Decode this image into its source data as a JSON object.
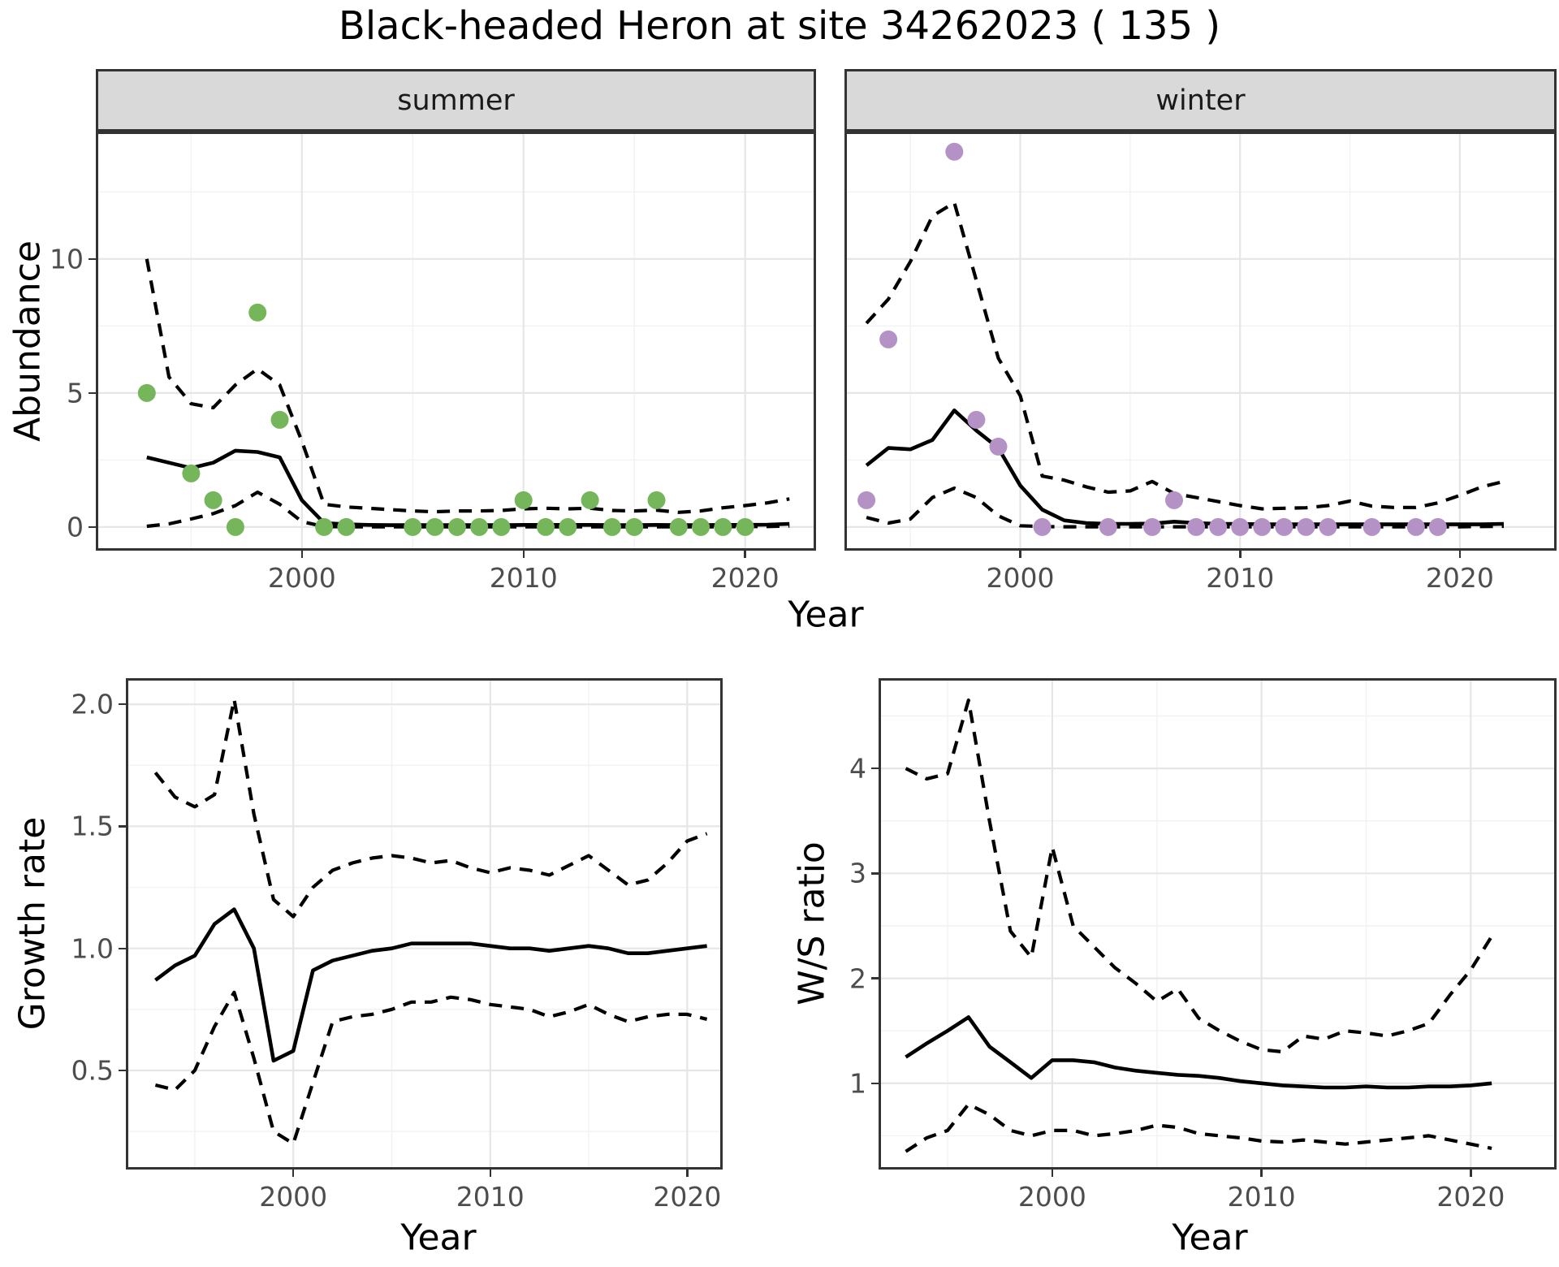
{
  "title": "Black-headed Heron at site 34262023 ( 135 )",
  "labels": {
    "year": "Year",
    "abundance": "Abundance"
  },
  "colors": {
    "summer_point": "#75B65A",
    "winter_point": "#B592C6",
    "line": "#000000",
    "grid_major": "#E6E6E6",
    "grid_minor": "#F2F2F2",
    "strip_bg": "#D9D9D9",
    "strip_text": "#1A1A1A",
    "panel_border": "#333333",
    "axis_text": "#4D4D4D",
    "tick": "#333333",
    "background": "#FFFFFF"
  },
  "chart_data": [
    {
      "id": "summer",
      "type": "line+scatter",
      "title": "summer",
      "xlabel": "Year",
      "ylabel": "Abundance",
      "xlim": [
        1990.7,
        2023.2
      ],
      "ylim": [
        -0.88,
        14.75
      ],
      "xticks": [
        2000,
        2010,
        2020
      ],
      "xtick_labels": [
        "2000",
        "2010",
        "2020"
      ],
      "yticks": [
        0,
        5,
        10
      ],
      "ytick_labels": [
        "0",
        "5",
        "10"
      ],
      "xminor": [
        1995,
        2005,
        2015
      ],
      "yminor": [
        2.5,
        7.5,
        12.5
      ],
      "years": [
        1993,
        1994,
        1995,
        1996,
        1997,
        1998,
        1999,
        2000,
        2001,
        2002,
        2003,
        2004,
        2005,
        2006,
        2007,
        2008,
        2009,
        2010,
        2011,
        2012,
        2013,
        2014,
        2015,
        2016,
        2017,
        2018,
        2019,
        2020,
        2021,
        2022
      ],
      "estimate": [
        2.6,
        2.4,
        2.2,
        2.4,
        2.85,
        2.8,
        2.6,
        1.0,
        0.15,
        0.1,
        0.08,
        0.07,
        0.07,
        0.07,
        0.07,
        0.07,
        0.07,
        0.08,
        0.08,
        0.08,
        0.08,
        0.07,
        0.07,
        0.08,
        0.07,
        0.07,
        0.08,
        0.08,
        0.09,
        0.12
      ],
      "upper_ci": [
        10.0,
        5.6,
        4.6,
        4.45,
        5.3,
        5.9,
        5.3,
        3.2,
        0.85,
        0.75,
        0.7,
        0.65,
        0.6,
        0.57,
        0.6,
        0.6,
        0.62,
        0.68,
        0.7,
        0.68,
        0.7,
        0.62,
        0.6,
        0.63,
        0.55,
        0.6,
        0.72,
        0.8,
        0.9,
        1.05
      ],
      "lower_ci": [
        0.03,
        0.12,
        0.3,
        0.5,
        0.8,
        1.3,
        0.85,
        0.2,
        0.02,
        0.01,
        0.01,
        0.01,
        0.01,
        0.01,
        0.01,
        0.01,
        0.01,
        0.01,
        0.01,
        0.01,
        0.01,
        0.01,
        0.01,
        0.01,
        0.01,
        0.01,
        0.01,
        0.02,
        0.02,
        0.04
      ],
      "points_x": [
        1993,
        1995,
        1996,
        1997,
        1998,
        1999,
        2001,
        2002,
        2005,
        2006,
        2007,
        2008,
        2009,
        2010,
        2011,
        2012,
        2013,
        2014,
        2015,
        2016,
        2017,
        2018,
        2019,
        2020
      ],
      "points_y": [
        5,
        2,
        1,
        0,
        8,
        4,
        0,
        0,
        0,
        0,
        0,
        0,
        0,
        1,
        0,
        0,
        1,
        0,
        0,
        1,
        0,
        0,
        0,
        0
      ],
      "point_color": "#75B65A"
    },
    {
      "id": "winter",
      "type": "line+scatter",
      "title": "winter",
      "xlabel": "Year",
      "ylabel": "Abundance",
      "xlim": [
        1992.0,
        2024.4
      ],
      "ylim": [
        -0.88,
        14.75
      ],
      "xticks": [
        2000,
        2010,
        2020
      ],
      "xtick_labels": [
        "2000",
        "2010",
        "2020"
      ],
      "yticks": [
        0,
        5,
        10
      ],
      "ytick_labels": [
        "0",
        "5",
        "10"
      ],
      "xminor": [
        1995,
        2005,
        2015
      ],
      "yminor": [
        2.5,
        7.5,
        12.5
      ],
      "years": [
        1993,
        1994,
        1995,
        1996,
        1997,
        1998,
        1999,
        2000,
        2001,
        2002,
        2003,
        2004,
        2005,
        2006,
        2007,
        2008,
        2009,
        2010,
        2011,
        2012,
        2013,
        2014,
        2015,
        2016,
        2017,
        2018,
        2019,
        2020,
        2021,
        2022
      ],
      "estimate": [
        2.3,
        2.95,
        2.9,
        3.25,
        4.35,
        3.6,
        2.95,
        1.55,
        0.65,
        0.25,
        0.15,
        0.12,
        0.12,
        0.13,
        0.2,
        0.15,
        0.12,
        0.12,
        0.1,
        0.1,
        0.1,
        0.1,
        0.1,
        0.1,
        0.1,
        0.1,
        0.1,
        0.1,
        0.1,
        0.12
      ],
      "upper_ci": [
        7.6,
        8.5,
        9.9,
        11.6,
        12.1,
        9.2,
        6.3,
        4.9,
        1.9,
        1.75,
        1.5,
        1.3,
        1.35,
        1.7,
        1.25,
        1.1,
        0.95,
        0.8,
        0.68,
        0.7,
        0.72,
        0.8,
        0.97,
        0.78,
        0.73,
        0.73,
        0.9,
        1.18,
        1.5,
        1.7
      ],
      "lower_ci": [
        0.36,
        0.15,
        0.3,
        1.1,
        1.45,
        1.1,
        0.42,
        0.05,
        0.02,
        0.01,
        0.01,
        0.01,
        0.01,
        0.01,
        0.01,
        0.01,
        0.01,
        0.01,
        0.01,
        0.01,
        0.01,
        0.01,
        0.01,
        0.01,
        0.01,
        0.01,
        0.01,
        0.01,
        0.02,
        0.03
      ],
      "points_x": [
        1993,
        1994,
        1997,
        1998,
        1999,
        2001,
        2004,
        2006,
        2007,
        2008,
        2009,
        2010,
        2011,
        2012,
        2013,
        2014,
        2016,
        2018,
        2019
      ],
      "points_y": [
        1,
        7,
        14,
        4,
        3,
        0,
        0,
        0,
        1,
        0,
        0,
        0,
        0,
        0,
        0,
        0,
        0,
        0,
        0
      ],
      "point_color": "#B592C6"
    },
    {
      "id": "growth",
      "type": "line",
      "title": "",
      "xlabel": "Year",
      "ylabel": "Growth rate",
      "xlim": [
        1991.5,
        2021.8
      ],
      "ylim": [
        0.094,
        2.107
      ],
      "xticks": [
        2000,
        2010,
        2020
      ],
      "xtick_labels": [
        "2000",
        "2010",
        "2020"
      ],
      "yticks": [
        0.5,
        1.0,
        1.5,
        2.0
      ],
      "ytick_labels": [
        "0.5",
        "1.0",
        "1.5",
        "2.0"
      ],
      "xminor": [
        1995,
        2005,
        2015
      ],
      "yminor": [
        0.25,
        0.75,
        1.25,
        1.75
      ],
      "years": [
        1993,
        1994,
        1995,
        1996,
        1997,
        1998,
        1999,
        2000,
        2001,
        2002,
        2003,
        2004,
        2005,
        2006,
        2007,
        2008,
        2009,
        2010,
        2011,
        2012,
        2013,
        2014,
        2015,
        2016,
        2017,
        2018,
        2019,
        2020,
        2021
      ],
      "estimate": [
        0.87,
        0.93,
        0.97,
        1.1,
        1.16,
        1.0,
        0.54,
        0.58,
        0.91,
        0.95,
        0.97,
        0.99,
        1.0,
        1.02,
        1.02,
        1.02,
        1.02,
        1.01,
        1.0,
        1.0,
        0.99,
        1.0,
        1.01,
        1.0,
        0.98,
        0.98,
        0.99,
        1.0,
        1.01
      ],
      "upper_ci": [
        1.72,
        1.62,
        1.58,
        1.63,
        2.02,
        1.55,
        1.2,
        1.13,
        1.25,
        1.32,
        1.35,
        1.37,
        1.38,
        1.37,
        1.35,
        1.36,
        1.33,
        1.31,
        1.33,
        1.32,
        1.3,
        1.34,
        1.38,
        1.32,
        1.26,
        1.28,
        1.35,
        1.44,
        1.47
      ],
      "lower_ci": [
        0.44,
        0.42,
        0.5,
        0.68,
        0.82,
        0.55,
        0.25,
        0.2,
        0.45,
        0.7,
        0.72,
        0.73,
        0.75,
        0.78,
        0.78,
        0.8,
        0.79,
        0.77,
        0.76,
        0.75,
        0.72,
        0.74,
        0.77,
        0.73,
        0.7,
        0.72,
        0.73,
        0.73,
        0.71
      ],
      "points_x": [],
      "points_y": [],
      "point_color": "#000000"
    },
    {
      "id": "ws",
      "type": "line",
      "title": "",
      "xlabel": "Year",
      "ylabel": "W/S ratio",
      "xlim": [
        1991.7,
        2024.1
      ],
      "ylim": [
        0.178,
        4.86
      ],
      "xticks": [
        2000,
        2010,
        2020
      ],
      "xtick_labels": [
        "2000",
        "2010",
        "2020"
      ],
      "yticks": [
        1,
        2,
        3,
        4
      ],
      "ytick_labels": [
        "1",
        "2",
        "3",
        "4"
      ],
      "xminor": [
        1995,
        2005,
        2015
      ],
      "yminor": [
        0.5,
        1.5,
        2.5,
        3.5,
        4.5
      ],
      "years": [
        1993,
        1994,
        1995,
        1996,
        1997,
        1998,
        1999,
        2000,
        2001,
        2002,
        2003,
        2004,
        2005,
        2006,
        2007,
        2008,
        2009,
        2010,
        2011,
        2012,
        2013,
        2014,
        2015,
        2016,
        2017,
        2018,
        2019,
        2020,
        2021
      ],
      "estimate": [
        1.25,
        1.38,
        1.5,
        1.63,
        1.35,
        1.2,
        1.05,
        1.22,
        1.22,
        1.2,
        1.15,
        1.12,
        1.1,
        1.08,
        1.07,
        1.05,
        1.02,
        1.0,
        0.98,
        0.97,
        0.96,
        0.96,
        0.97,
        0.96,
        0.96,
        0.97,
        0.97,
        0.98,
        1.0
      ],
      "upper_ci": [
        4.0,
        3.9,
        3.95,
        4.65,
        3.5,
        2.45,
        2.2,
        3.25,
        2.5,
        2.3,
        2.1,
        1.95,
        1.78,
        1.9,
        1.62,
        1.5,
        1.4,
        1.32,
        1.3,
        1.45,
        1.42,
        1.5,
        1.48,
        1.45,
        1.5,
        1.57,
        1.84,
        2.08,
        2.4
      ],
      "lower_ci": [
        0.35,
        0.48,
        0.55,
        0.8,
        0.7,
        0.55,
        0.5,
        0.55,
        0.55,
        0.5,
        0.52,
        0.55,
        0.6,
        0.58,
        0.52,
        0.5,
        0.48,
        0.45,
        0.44,
        0.46,
        0.44,
        0.42,
        0.44,
        0.46,
        0.48,
        0.5,
        0.46,
        0.42,
        0.38
      ],
      "points_x": [],
      "points_y": [],
      "point_color": "#000000"
    }
  ]
}
